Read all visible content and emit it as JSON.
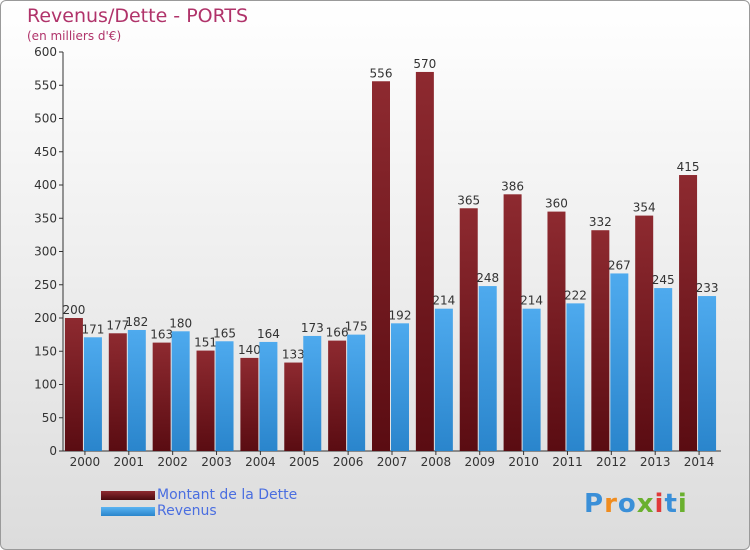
{
  "chart_data": {
    "type": "bar",
    "title": "Revenus/Dette - PORTS",
    "subtitle": "(en milliers d'€)",
    "categories": [
      "2000",
      "2001",
      "2002",
      "2003",
      "2004",
      "2005",
      "2006",
      "2007",
      "2008",
      "2009",
      "2010",
      "2011",
      "2012",
      "2013",
      "2014"
    ],
    "series": [
      {
        "name": "Montant de la Dette",
        "color": "#7a1c22",
        "values": [
          200,
          177,
          163,
          151,
          140,
          133,
          166,
          556,
          570,
          365,
          386,
          360,
          332,
          354,
          415
        ]
      },
      {
        "name": "Revenus",
        "color": "#3d9be0",
        "values": [
          171,
          182,
          180,
          165,
          164,
          173,
          175,
          192,
          214,
          248,
          214,
          222,
          267,
          245,
          233
        ]
      }
    ],
    "ylim": [
      0,
      600
    ],
    "yticks": [
      0,
      50,
      100,
      150,
      200,
      250,
      300,
      350,
      400,
      450,
      500,
      550,
      600
    ],
    "grid": false,
    "legend_position": "bottom-left"
  },
  "logo": {
    "text": "Proxiti",
    "letters": [
      "P",
      "r",
      "o",
      "x",
      "i",
      "t",
      "i"
    ],
    "colors": [
      "#3a8fd8",
      "#f08c1e",
      "#3a8fd8",
      "#6ab02e",
      "#e03a3a",
      "#3a8fd8",
      "#6ab02e"
    ]
  }
}
